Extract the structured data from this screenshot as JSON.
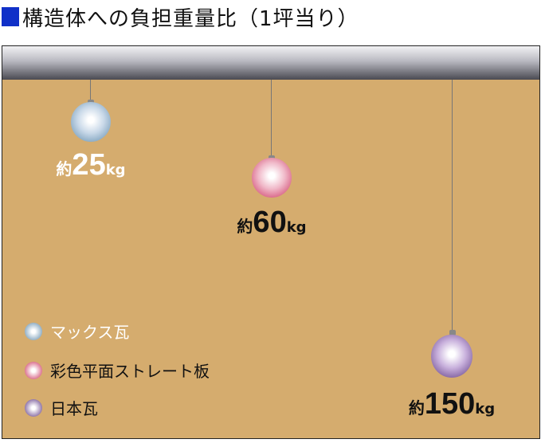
{
  "title": "構造体への負担重量比（1坪当り）",
  "colors": {
    "background": "#d5ac6e",
    "title_square": "#1030c8",
    "max_kawara": "#6e96b4",
    "slate": "#d0456e",
    "nihon_kawara": "#6c4a8e"
  },
  "weights": [
    {
      "material": "マックス瓦",
      "prefix": "約",
      "value": "25",
      "unit": "kg"
    },
    {
      "material": "彩色平面ストレート板",
      "prefix": "約",
      "value": "60",
      "unit": "kg"
    },
    {
      "material": "日本瓦",
      "prefix": "約",
      "value": "150",
      "unit": "kg"
    }
  ],
  "legend": [
    {
      "label": "マックス瓦"
    },
    {
      "label": "彩色平面ストレート板"
    },
    {
      "label": "日本瓦"
    }
  ]
}
